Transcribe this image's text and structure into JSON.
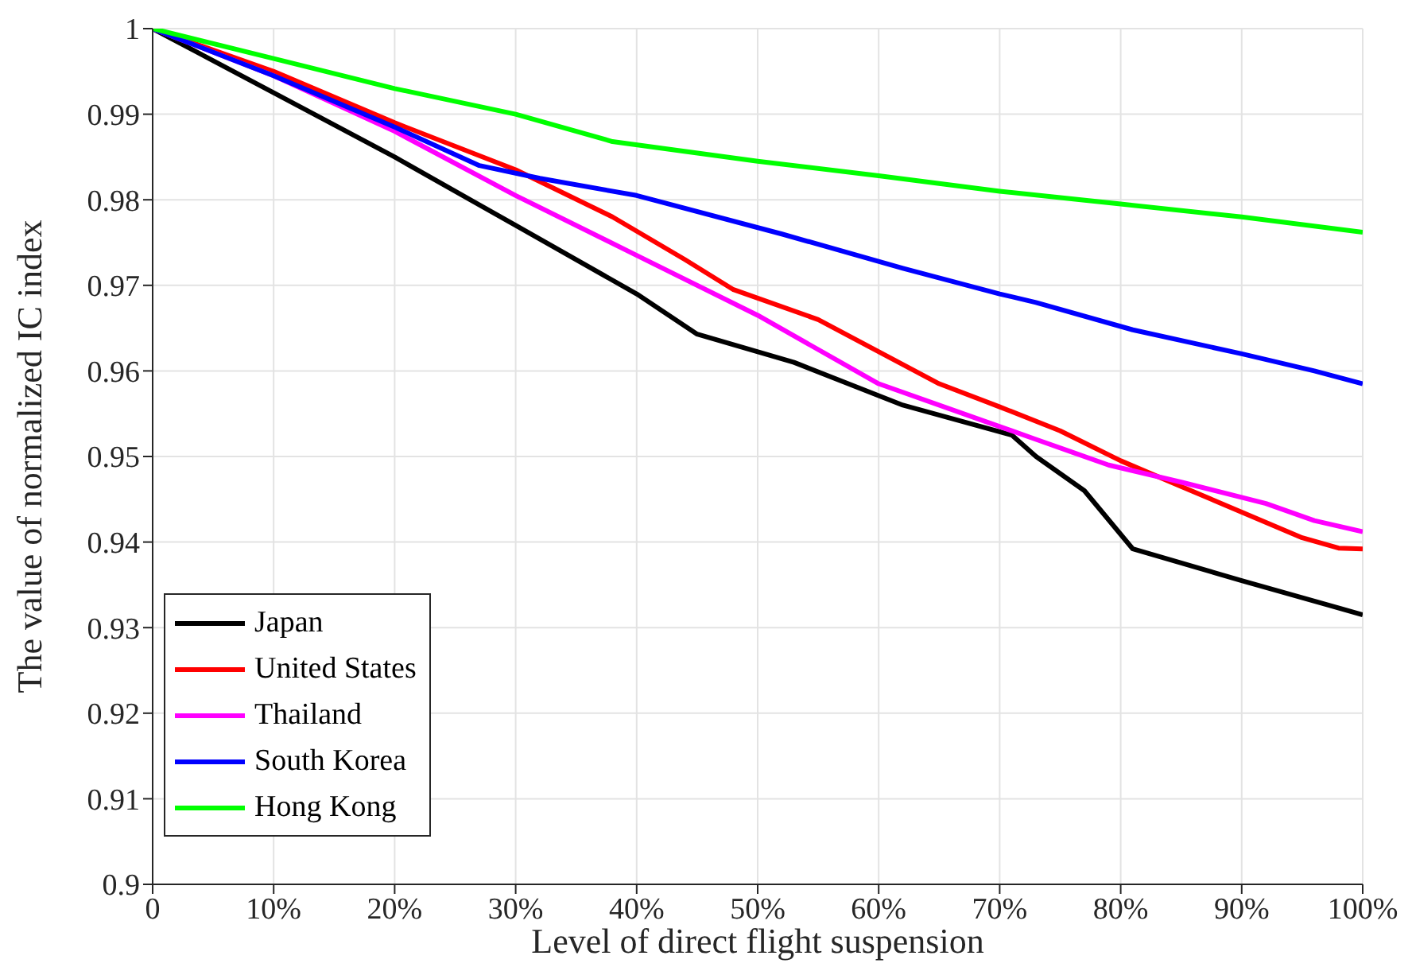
{
  "chart_data": {
    "type": "line",
    "xlabel": "Level of direct flight suspension",
    "ylabel": "The value of normalized IC index",
    "xlim": [
      0,
      100
    ],
    "ylim": [
      0.9,
      1
    ],
    "xticks": [
      0,
      {
        "value": 10,
        "label": "10%"
      },
      {
        "value": 20,
        "label": "20%"
      },
      {
        "value": 30,
        "label": "30%"
      },
      {
        "value": 40,
        "label": "40%"
      },
      {
        "value": 50,
        "label": "50%"
      },
      {
        "value": 60,
        "label": "60%"
      },
      {
        "value": 70,
        "label": "70%"
      },
      {
        "value": 80,
        "label": "80%"
      },
      {
        "value": 90,
        "label": "90%"
      },
      {
        "value": 100,
        "label": "100%"
      }
    ],
    "yticks": [
      0.9,
      0.91,
      0.92,
      0.93,
      0.94,
      0.95,
      0.96,
      0.97,
      0.98,
      0.99,
      1
    ],
    "grid": true,
    "legend": "bottom left",
    "marker": "none",
    "line_style": "solid",
    "series": [
      {
        "name": "Japan",
        "color": "#000000",
        "x": [
          0,
          10,
          20,
          30,
          40,
          45,
          53,
          62,
          71,
          73,
          77,
          81,
          90,
          100
        ],
        "values": [
          1,
          0.9925,
          0.985,
          0.977,
          0.969,
          0.9643,
          0.961,
          0.956,
          0.9525,
          0.95,
          0.946,
          0.9392,
          0.9355,
          0.9315
        ]
      },
      {
        "name": "United States",
        "color": "#ff0000",
        "x": [
          0,
          10,
          20,
          30,
          38,
          44,
          48,
          55,
          65,
          70,
          75,
          80,
          85,
          90,
          95,
          98,
          100
        ],
        "values": [
          1,
          0.995,
          0.989,
          0.9835,
          0.978,
          0.973,
          0.9695,
          0.966,
          0.9585,
          0.9558,
          0.953,
          0.9495,
          0.9465,
          0.9435,
          0.9405,
          0.9393,
          0.9392
        ]
      },
      {
        "name": "Thailand",
        "color": "#ff00ff",
        "x": [
          0,
          10,
          20,
          30,
          40,
          50,
          60,
          70,
          73,
          76,
          79,
          85,
          92,
          96,
          100
        ],
        "values": [
          1,
          0.9945,
          0.988,
          0.9805,
          0.9735,
          0.9665,
          0.9585,
          0.9535,
          0.952,
          0.9505,
          0.949,
          0.947,
          0.9445,
          0.9425,
          0.9412
        ]
      },
      {
        "name": "South Korea",
        "color": "#0000ff",
        "x": [
          0,
          10,
          20,
          27,
          32,
          40,
          52,
          62,
          70,
          73,
          81,
          90,
          96,
          100
        ],
        "values": [
          1,
          0.9945,
          0.9885,
          0.984,
          0.9825,
          0.9805,
          0.976,
          0.972,
          0.969,
          0.968,
          0.9648,
          0.962,
          0.96,
          0.9585
        ]
      },
      {
        "name": "Hong Kong",
        "color": "#00ff00",
        "x": [
          0,
          10,
          20,
          30,
          38,
          50,
          60,
          70,
          80,
          90,
          100
        ],
        "values": [
          1,
          0.9965,
          0.993,
          0.99,
          0.9868,
          0.9845,
          0.9828,
          0.981,
          0.9795,
          0.978,
          0.9762
        ]
      }
    ]
  }
}
